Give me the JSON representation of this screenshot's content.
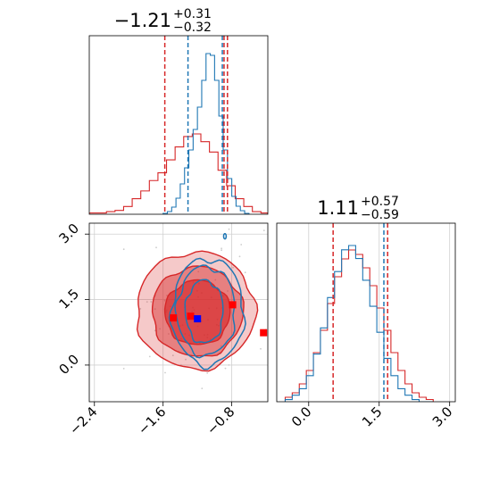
{
  "chart_data": {
    "type": "corner",
    "colors": {
      "red": "#d62728",
      "blue": "#1f77b4",
      "grid": "#d0d0d0",
      "scatter": "#cccccc"
    },
    "titles": {
      "p1": {
        "value": "−1.21",
        "sup": "+0.31",
        "sub": "−0.32"
      },
      "p2": {
        "value": "1.11",
        "sup": "+0.57",
        "sub": "−0.59"
      }
    },
    "axes": {
      "x1": {
        "range": [
          -2.46,
          -0.38
        ],
        "ticks": [
          -2.4,
          -1.6,
          -0.8
        ],
        "tick_labels": [
          "−2.4",
          "−1.6",
          "−0.8"
        ]
      },
      "x2": {
        "range": [
          -0.68,
          3.12
        ],
        "ticks": [
          0.0,
          1.5,
          3.0
        ],
        "tick_labels": [
          "0.0",
          "1.5",
          "3.0"
        ]
      },
      "y2": {
        "range": [
          -0.84,
          3.25
        ],
        "ticks": [
          0.0,
          1.5,
          3.0
        ],
        "tick_labels": [
          "0.0",
          "1.5",
          "3.0"
        ]
      }
    },
    "quantiles": {
      "p1_red": [
        -1.58,
        -0.89,
        -0.85
      ],
      "p1_blue": [
        -1.31,
        -0.91
      ],
      "p2_red": [
        0.52,
        1.68
      ],
      "p2_blue": [
        1.6
      ]
    },
    "histograms": {
      "p1_red": {
        "edges": [
          -2.46,
          -2.36,
          -2.26,
          -2.16,
          -2.06,
          -1.96,
          -1.86,
          -1.76,
          -1.66,
          -1.56,
          -1.46,
          -1.36,
          -1.26,
          -1.16,
          -1.06,
          -0.96,
          -0.86,
          -0.76,
          -0.66,
          -0.56,
          -0.46,
          -0.38
        ],
        "values": [
          1,
          1,
          2,
          3,
          6,
          12,
          18,
          26,
          32,
          42,
          52,
          60,
          62,
          56,
          48,
          34,
          22,
          12,
          6,
          2,
          1
        ]
      },
      "p1_blue": {
        "edges": [
          -1.6,
          -1.55,
          -1.5,
          -1.45,
          -1.4,
          -1.35,
          -1.3,
          -1.25,
          -1.2,
          -1.15,
          -1.1,
          -1.05,
          -1.0,
          -0.95,
          -0.9,
          -0.85,
          -0.8,
          -0.75,
          -0.7,
          -0.65,
          -0.6
        ],
        "values": [
          1,
          3,
          8,
          18,
          34,
          52,
          72,
          95,
          120,
          150,
          180,
          178,
          150,
          110,
          72,
          40,
          20,
          9,
          4,
          1
        ]
      },
      "p2_red": {
        "edges": [
          -0.5,
          -0.35,
          -0.2,
          -0.05,
          0.1,
          0.25,
          0.4,
          0.55,
          0.7,
          0.85,
          1.0,
          1.15,
          1.3,
          1.45,
          1.6,
          1.75,
          1.9,
          2.05,
          2.2,
          2.35,
          2.5,
          2.65
        ],
        "values": [
          2,
          4,
          8,
          14,
          22,
          32,
          44,
          56,
          64,
          68,
          66,
          60,
          52,
          42,
          32,
          22,
          14,
          8,
          4,
          2,
          1
        ]
      },
      "p2_blue": {
        "edges": [
          -0.5,
          -0.35,
          -0.2,
          -0.05,
          0.1,
          0.25,
          0.4,
          0.55,
          0.7,
          0.85,
          1.0,
          1.15,
          1.3,
          1.45,
          1.6,
          1.75,
          1.9,
          2.05,
          2.2,
          2.35,
          2.5,
          2.65
        ],
        "values": [
          1,
          3,
          6,
          12,
          22,
          34,
          48,
          60,
          70,
          72,
          66,
          56,
          44,
          32,
          20,
          12,
          6,
          3,
          1,
          0,
          0
        ]
      }
    },
    "red_markers": [
      {
        "x": -1.48,
        "y": 1.08
      },
      {
        "x": -1.28,
        "y": 1.12
      },
      {
        "x": -0.79,
        "y": 1.38
      },
      {
        "x": -0.43,
        "y": 0.74
      }
    ],
    "blue_marker": {
      "x": -1.2,
      "y": 1.06
    },
    "contours": {
      "red_filled": [
        {
          "cx": -1.22,
          "cy": 1.25,
          "rx": 0.69,
          "ry": 1.34,
          "opacity": 0.25
        },
        {
          "cx": -1.2,
          "cy": 1.22,
          "rx": 0.53,
          "ry": 1.03,
          "opacity": 0.45
        },
        {
          "cx": -1.2,
          "cy": 1.2,
          "rx": 0.38,
          "ry": 0.74,
          "opacity": 0.65
        }
      ],
      "blue_lines": [
        {
          "cx": -1.12,
          "cy": 1.22,
          "rx": 0.22,
          "ry": 0.72
        },
        {
          "cx": -1.1,
          "cy": 1.24,
          "rx": 0.34,
          "ry": 1.02
        },
        {
          "cx": -1.08,
          "cy": 1.22,
          "rx": 0.42,
          "ry": 1.22
        }
      ]
    }
  }
}
